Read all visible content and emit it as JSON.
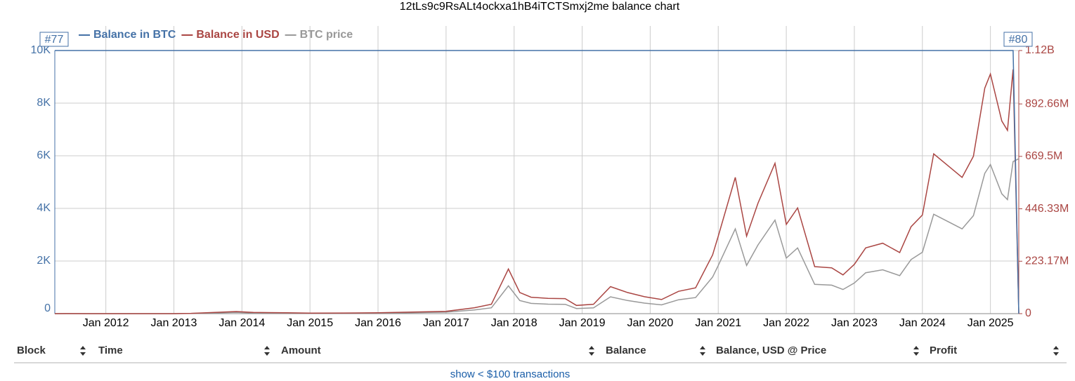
{
  "chart_data": {
    "type": "line",
    "title": "12tLs9c9RsALt4ockxa1hB4iTCTSmxj2me balance chart",
    "annotations": [
      "#77",
      "#80"
    ],
    "x": [
      "2011-04",
      "2011-06",
      "2011-10",
      "2012-06",
      "2013-01",
      "2013-04",
      "2013-12",
      "2014-03",
      "2014-09",
      "2015-01",
      "2015-07",
      "2016-01",
      "2016-07",
      "2017-01",
      "2017-06",
      "2017-09",
      "2017-12",
      "2018-02",
      "2018-04",
      "2018-07",
      "2018-10",
      "2018-12",
      "2019-03",
      "2019-06",
      "2019-09",
      "2019-12",
      "2020-03",
      "2020-06",
      "2020-09",
      "2020-12",
      "2021-01",
      "2021-04",
      "2021-06",
      "2021-08",
      "2021-11",
      "2022-01",
      "2022-03",
      "2022-06",
      "2022-09",
      "2022-11",
      "2023-01",
      "2023-03",
      "2023-06",
      "2023-09",
      "2023-11",
      "2024-01",
      "2024-03",
      "2024-06",
      "2024-08",
      "2024-10",
      "2024-12",
      "2025-01",
      "2025-03",
      "2025-04",
      "2025-05",
      "2025-06"
    ],
    "xlim": [
      "2011-04",
      "2025-06"
    ],
    "xticks": [
      {
        "value": "2012-01",
        "label": "Jan 2012"
      },
      {
        "value": "2013-01",
        "label": "Jan 2013"
      },
      {
        "value": "2014-01",
        "label": "Jan 2014"
      },
      {
        "value": "2015-01",
        "label": "Jan 2015"
      },
      {
        "value": "2016-01",
        "label": "Jan 2016"
      },
      {
        "value": "2017-01",
        "label": "Jan 2017"
      },
      {
        "value": "2018-01",
        "label": "Jan 2018"
      },
      {
        "value": "2019-01",
        "label": "Jan 2019"
      },
      {
        "value": "2020-01",
        "label": "Jan 2020"
      },
      {
        "value": "2021-01",
        "label": "Jan 2021"
      },
      {
        "value": "2022-01",
        "label": "Jan 2022"
      },
      {
        "value": "2023-01",
        "label": "Jan 2023"
      },
      {
        "value": "2024-01",
        "label": "Jan 2024"
      },
      {
        "value": "2025-01",
        "label": "Jan 2025"
      }
    ],
    "ylim": [
      0,
      10000
    ],
    "yticks": [
      0,
      {
        "value": 2000,
        "label": "2K"
      },
      {
        "value": 4000,
        "label": "4K"
      },
      {
        "value": 6000,
        "label": "6K"
      },
      {
        "value": 8000,
        "label": "8K"
      },
      {
        "value": 10000,
        "label": "10K"
      }
    ],
    "y2lim": [
      0,
      1120000000
    ],
    "y2ticks": [
      0,
      {
        "value": 223170000,
        "label": "223.17M"
      },
      {
        "value": 446330000,
        "label": "446.33M"
      },
      {
        "value": 669500000,
        "label": "669.5M"
      },
      {
        "value": 892660000,
        "label": "892.66M"
      },
      {
        "value": 1120000000,
        "label": "1.12B"
      }
    ],
    "y3lim": [
      0,
      180000
    ],
    "grid": true,
    "series": [
      {
        "name": "Balance in BTC",
        "color": "#4572a7",
        "values": [
          10000,
          10000,
          10000,
          10000,
          10000,
          10000,
          10000,
          10000,
          10000,
          10000,
          10000,
          10000,
          10000,
          10000,
          10000,
          10000,
          10000,
          10000,
          10000,
          10000,
          10000,
          10000,
          10000,
          10000,
          10000,
          10000,
          10000,
          10000,
          10000,
          10000,
          10000,
          10000,
          10000,
          10000,
          10000,
          10000,
          10000,
          10000,
          10000,
          10000,
          10000,
          10000,
          10000,
          10000,
          10000,
          10000,
          10000,
          10000,
          10000,
          10000,
          10000,
          10000,
          10000,
          10000,
          10000,
          0
        ]
      },
      {
        "name": "Balance in USD",
        "color": "#aa4643",
        "axis": "y2",
        "values": [
          10000,
          150000,
          30000,
          60000,
          140000,
          1300000,
          9000000,
          5000000,
          4000000,
          2200000,
          2800000,
          4000000,
          6500000,
          10000000,
          25000000,
          40000000,
          190000000,
          90000000,
          70000000,
          65000000,
          64000000,
          35000000,
          40000000,
          115000000,
          90000000,
          72000000,
          60000000,
          95000000,
          110000000,
          250000000,
          330000000,
          580000000,
          330000000,
          470000000,
          640000000,
          380000000,
          450000000,
          200000000,
          195000000,
          165000000,
          210000000,
          280000000,
          300000000,
          260000000,
          370000000,
          420000000,
          680000000,
          620000000,
          580000000,
          670000000,
          960000000,
          1020000000,
          820000000,
          780000000,
          1040000000,
          0
        ]
      },
      {
        "name": "BTC price",
        "color": "#999999",
        "axis": "y3",
        "values": [
          1,
          15,
          3,
          6,
          14,
          130,
          900,
          500,
          400,
          220,
          280,
          400,
          650,
          1000,
          2500,
          4000,
          19000,
          9000,
          7000,
          6500,
          6400,
          3500,
          4000,
          11500,
          9000,
          7200,
          6000,
          9500,
          11000,
          25000,
          33000,
          58000,
          33000,
          47000,
          64000,
          38000,
          45000,
          20000,
          19500,
          16500,
          21000,
          28000,
          30000,
          26000,
          37000,
          42000,
          68000,
          62000,
          58000,
          67000,
          96000,
          102000,
          82000,
          78000,
          104000,
          106000
        ]
      }
    ]
  },
  "table": {
    "columns": [
      "Block",
      "Time",
      "Amount",
      "Balance",
      "Balance, USD @ Price",
      "Profit"
    ],
    "link": "show < $100 transactions"
  }
}
